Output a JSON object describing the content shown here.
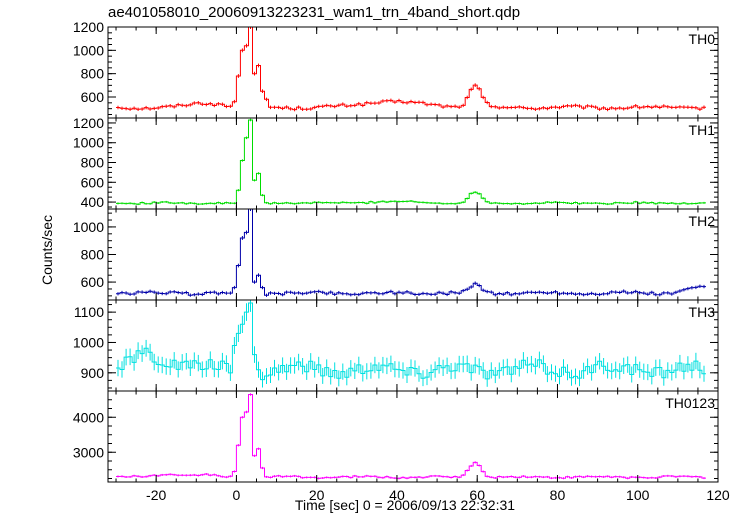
{
  "chart_data": {
    "type": "line",
    "title": "ae401058010_20060913223231_wam1_trn_4band_short.qdp",
    "xlabel": "Time [sec] 0 = 2006/09/13 22:32:31",
    "ylabel": "Counts/sec",
    "xlim": [
      -32,
      120
    ],
    "x_ticks": [
      -20,
      0,
      20,
      40,
      60,
      80,
      100,
      120
    ],
    "bin_width": 1,
    "x_start": -30,
    "x_end": 117,
    "panels": [
      {
        "name": "TH0",
        "color": "#ff0000",
        "ylim": [
          420,
          1200
        ],
        "y_ticks": [
          600,
          800,
          1000,
          1200
        ],
        "baseline": 510,
        "noise": 12,
        "flare": [
          [
            -1,
            560
          ],
          [
            0,
            780
          ],
          [
            1,
            1000
          ],
          [
            2,
            1040
          ],
          [
            3,
            1200
          ],
          [
            4,
            800
          ],
          [
            5,
            870
          ],
          [
            6,
            650
          ],
          [
            7,
            580
          ]
        ],
        "bumps": [
          [
            -8,
            40,
            4
          ],
          [
            36,
            40,
            6
          ],
          [
            59,
            180,
            1.5
          ],
          [
            45,
            20,
            8
          ]
        ]
      },
      {
        "name": "TH1",
        "color": "#00dd00",
        "ylim": [
          330,
          1250
        ],
        "y_ticks": [
          400,
          600,
          800,
          1000,
          1200
        ],
        "baseline": 390,
        "noise": 8,
        "flare": [
          [
            0,
            520
          ],
          [
            1,
            820
          ],
          [
            2,
            1050
          ],
          [
            3,
            1230
          ],
          [
            4,
            620
          ],
          [
            5,
            690
          ],
          [
            6,
            470
          ]
        ],
        "bumps": [
          [
            59,
            110,
            1.5
          ],
          [
            38,
            15,
            6
          ]
        ]
      },
      {
        "name": "TH2",
        "color": "#0000aa",
        "ylim": [
          470,
          1130
        ],
        "y_ticks": [
          600,
          800,
          1000
        ],
        "baseline": 520,
        "noise": 10,
        "flare": [
          [
            -1,
            560
          ],
          [
            0,
            720
          ],
          [
            1,
            920
          ],
          [
            2,
            960
          ],
          [
            3,
            1130
          ],
          [
            4,
            600
          ],
          [
            5,
            650
          ],
          [
            6,
            560
          ]
        ],
        "bumps": [
          [
            59,
            60,
            1.5
          ],
          [
            115,
            40,
            3
          ]
        ]
      },
      {
        "name": "TH3",
        "color": "#00e0e0",
        "ylim": [
          840,
          1140
        ],
        "y_ticks": [
          900,
          1000,
          1100
        ],
        "baseline": 910,
        "noise": 22,
        "flare": [
          [
            -1,
            990
          ],
          [
            0,
            1030
          ],
          [
            1,
            1060
          ],
          [
            2,
            1100
          ],
          [
            3,
            1130
          ],
          [
            4,
            960
          ]
        ],
        "bumps": [
          [
            -24,
            40,
            3
          ],
          [
            -15,
            25,
            4
          ]
        ]
      },
      {
        "name": "TH0123",
        "color": "#ff00ff",
        "ylim": [
          2150,
          4750
        ],
        "y_ticks": [
          3000,
          4000
        ],
        "baseline": 2290,
        "noise": 25,
        "flare": [
          [
            -1,
            2450
          ],
          [
            0,
            3200
          ],
          [
            1,
            4000
          ],
          [
            2,
            4150
          ],
          [
            3,
            4650
          ],
          [
            4,
            2900
          ],
          [
            5,
            3100
          ],
          [
            6,
            2550
          ]
        ],
        "bumps": [
          [
            -18,
            80,
            3
          ],
          [
            -8,
            60,
            3
          ],
          [
            59,
            420,
            1.5
          ]
        ]
      }
    ]
  }
}
